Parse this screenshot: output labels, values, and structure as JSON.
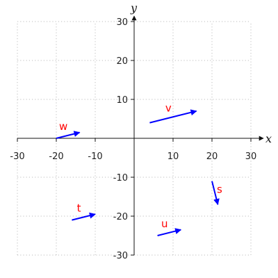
{
  "chart_data": {
    "type": "vector-field",
    "xlabel": "x",
    "ylabel": "y",
    "xlim": [
      -30,
      30
    ],
    "ylim": [
      -30,
      30
    ],
    "xticks": [
      -30,
      -20,
      -10,
      10,
      20,
      30
    ],
    "yticks": [
      -30,
      -20,
      -10,
      10,
      20,
      30
    ],
    "grid": true,
    "vector_color": "#0000ff",
    "label_color": "#ff0000",
    "vectors": [
      {
        "name": "v",
        "start": [
          4,
          4
        ],
        "end": [
          16,
          7
        ]
      },
      {
        "name": "w",
        "start": [
          -20,
          0
        ],
        "end": [
          -14,
          1.5
        ]
      },
      {
        "name": "t",
        "start": [
          -16,
          -21
        ],
        "end": [
          -10,
          -19.5
        ]
      },
      {
        "name": "u",
        "start": [
          6,
          -25
        ],
        "end": [
          12,
          -23.5
        ]
      },
      {
        "name": "s",
        "start": [
          20,
          -11
        ],
        "end": [
          21.5,
          -17
        ]
      }
    ]
  }
}
